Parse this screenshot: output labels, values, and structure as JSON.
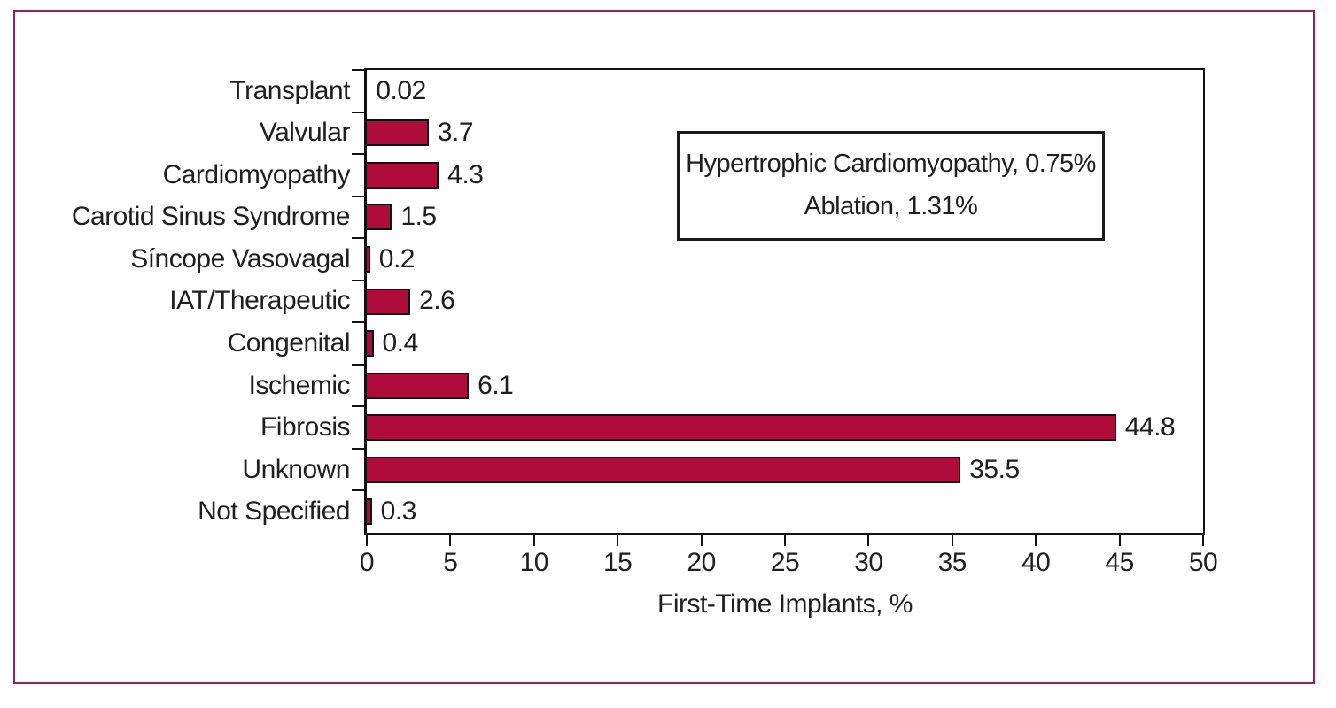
{
  "figure": {
    "background": "#FFFFFF",
    "border_color": "#9D2148"
  },
  "chart_data": {
    "type": "bar",
    "orientation": "horizontal",
    "categories": [
      "Transplant",
      "Valvular",
      "Cardiomyopathy",
      "Carotid Sinus Syndrome",
      "Síncope Vasovagal",
      "IAT/Therapeutic",
      "Congenital",
      "Ischemic",
      "Fibrosis",
      "Unknown",
      "Not Specified"
    ],
    "values": [
      0.02,
      3.7,
      4.3,
      1.5,
      0.2,
      2.6,
      0.4,
      6.1,
      44.8,
      35.5,
      0.3
    ],
    "value_labels": [
      "0.02",
      "3.7",
      "4.3",
      "1.5",
      "0.2",
      "2.6",
      "0.4",
      "6.1",
      "44.8",
      "35.5",
      "0.3"
    ],
    "xlabel": "First-Time Implants, %",
    "xlim": [
      0,
      50
    ],
    "xticks": [
      0,
      5,
      10,
      15,
      20,
      25,
      30,
      35,
      40,
      45,
      50
    ],
    "grid": false,
    "annotation": {
      "lines": [
        "Hypertrophic Cardiomyopathy, 0.75%",
        "Ablation, 1.31%"
      ]
    },
    "colors": {
      "bar_fill": "#AF0B3B",
      "bar_outline": "#111111",
      "axis": "#111111",
      "text": "#1F1F1F"
    }
  }
}
